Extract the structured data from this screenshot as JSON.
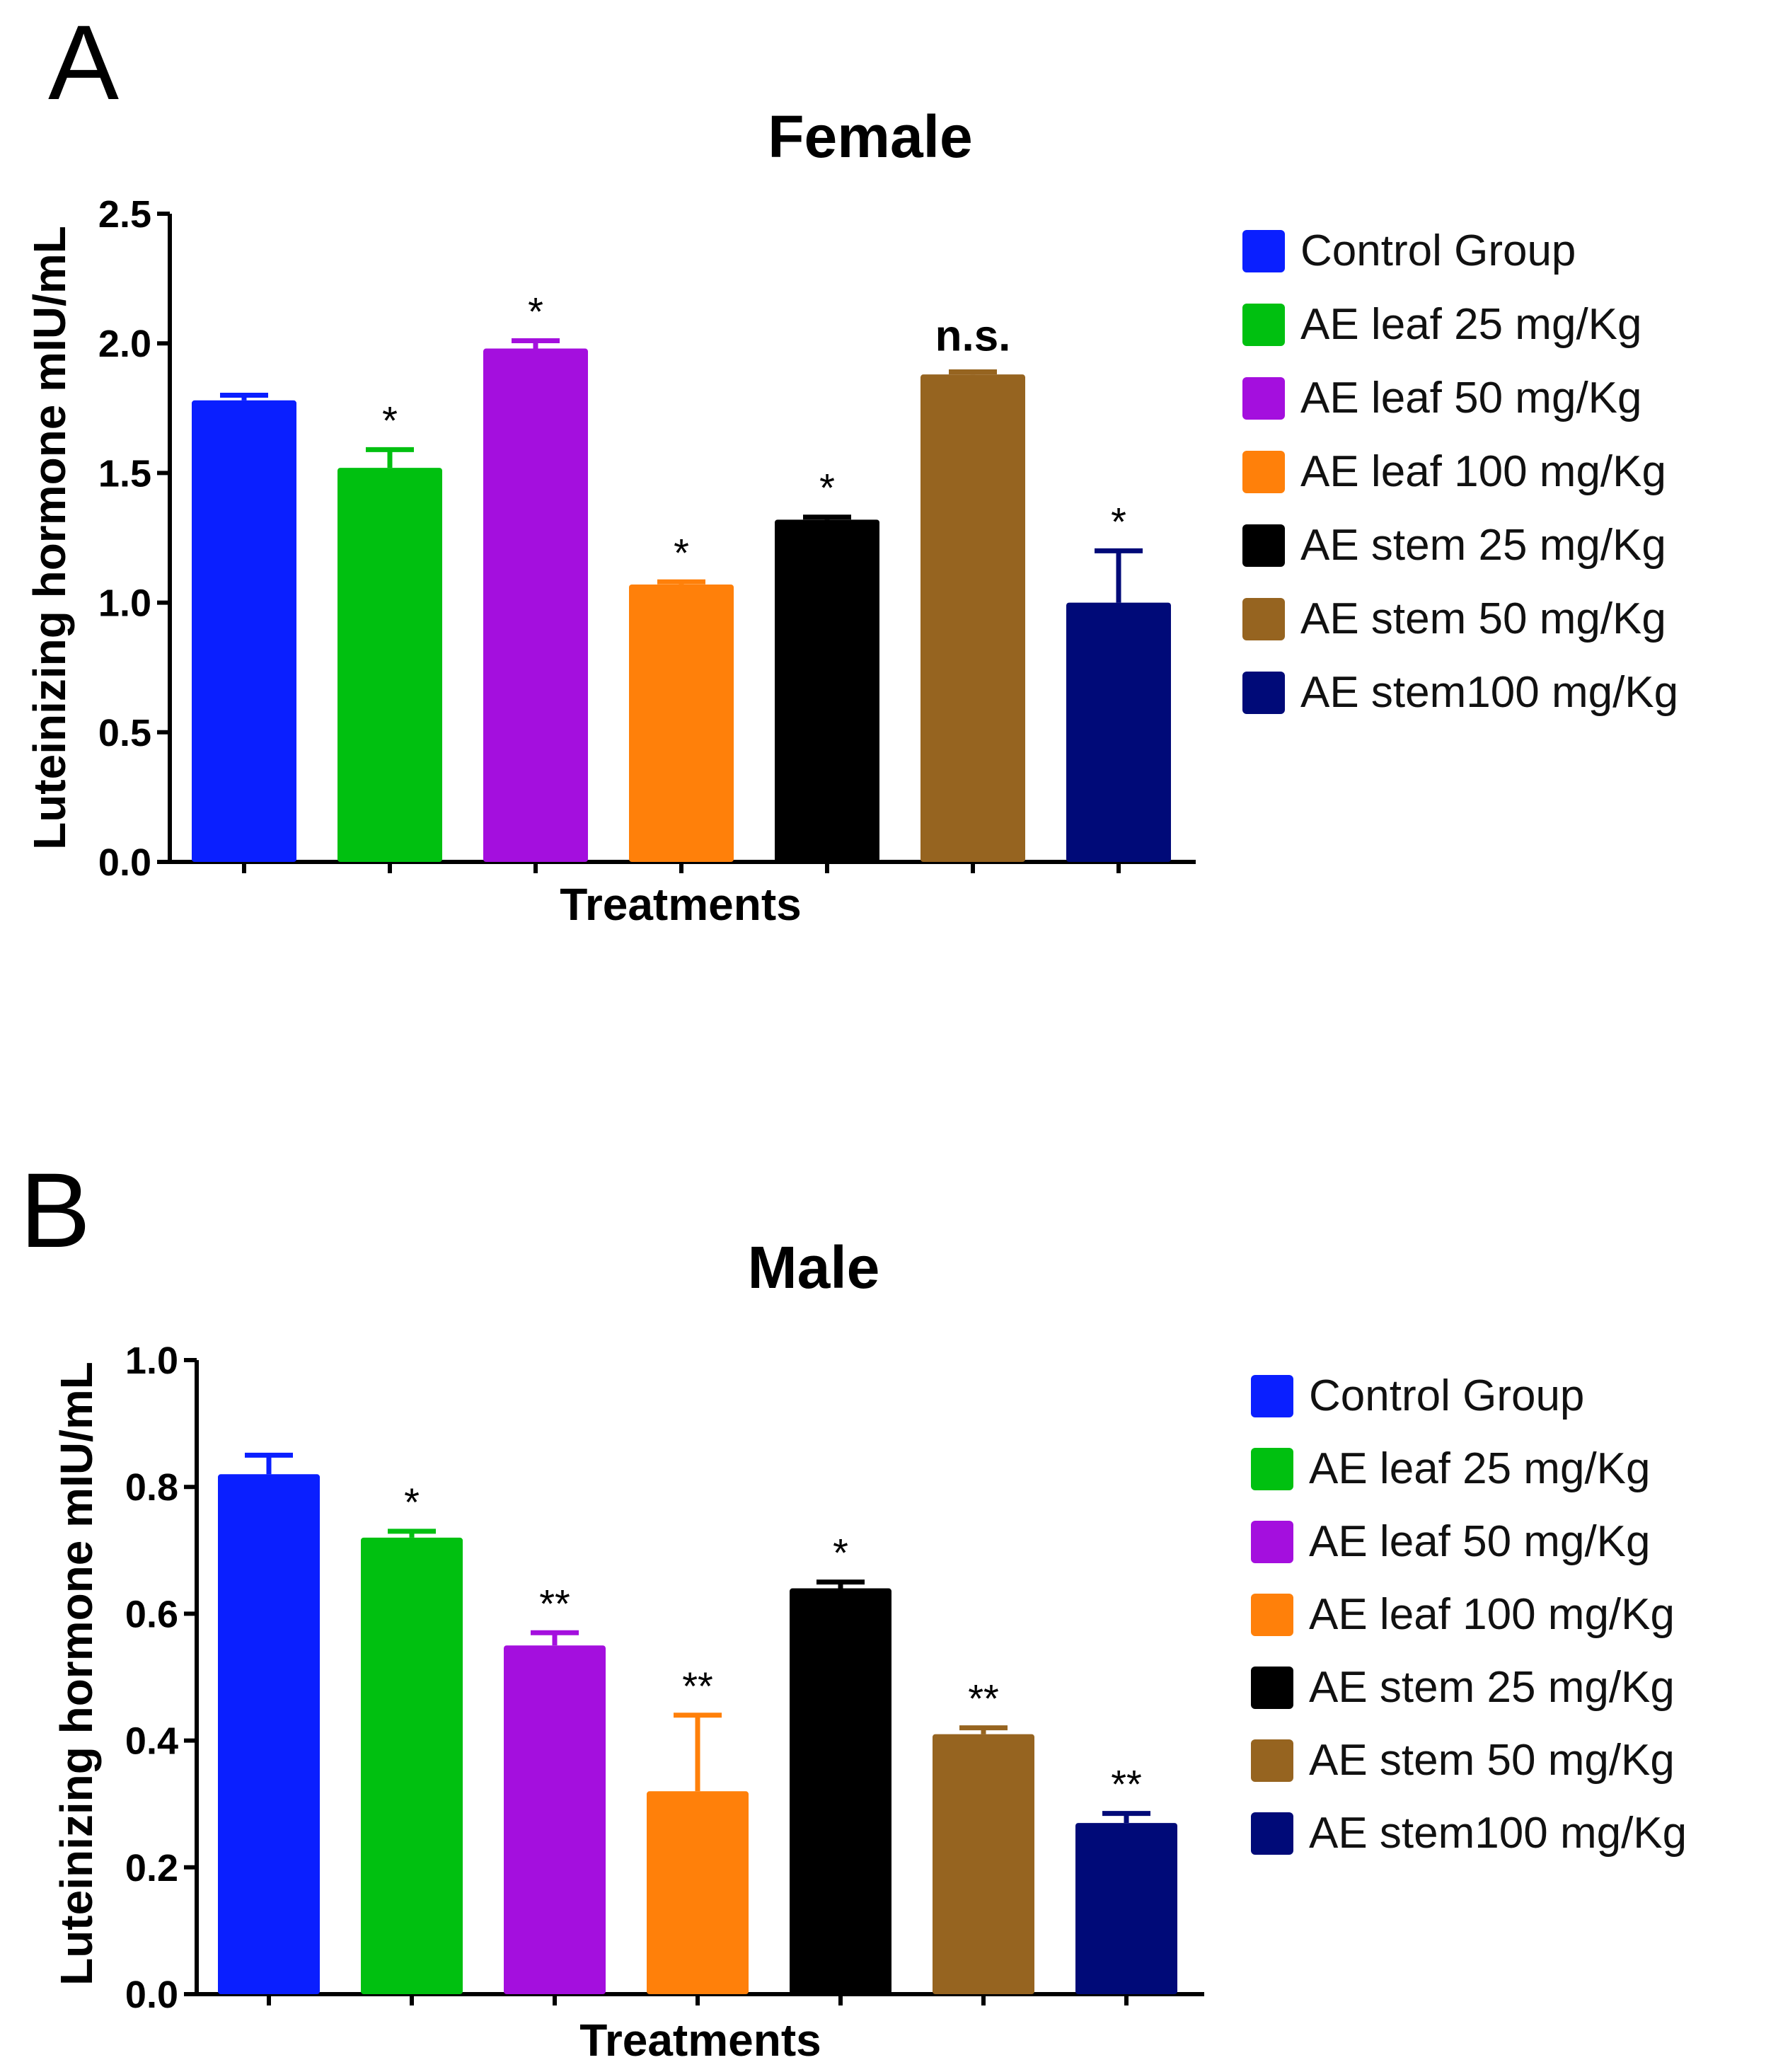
{
  "chart_data": [
    {
      "type": "bar",
      "panel": "A",
      "title": "Female",
      "xlabel": "Treatments",
      "ylabel": "Luteinizing hormone mIU/mL",
      "ylim": [
        0,
        2.5
      ],
      "yticks": [
        "0.0",
        "0.5",
        "1.0",
        "1.5",
        "2.0",
        "2.5"
      ],
      "yticks_values": [
        0,
        0.5,
        1.0,
        1.5,
        2.0,
        2.5
      ],
      "legend_position": "right",
      "series": [
        {
          "name": "Control Group",
          "color": "#0a1fff",
          "value": 1.78,
          "error": 0.02,
          "sig": ""
        },
        {
          "name": "AE leaf 25 mg/Kg",
          "color": "#00c010",
          "value": 1.52,
          "error": 0.07,
          "sig": "*"
        },
        {
          "name": "AE leaf 50 mg/Kg",
          "color": "#a40fde",
          "value": 1.98,
          "error": 0.03,
          "sig": "*"
        },
        {
          "name": "AE leaf 100 mg/Kg",
          "color": "#ff800a",
          "value": 1.07,
          "error": 0.01,
          "sig": "*"
        },
        {
          "name": "AE stem 25 mg/Kg",
          "color": "#000000",
          "value": 1.32,
          "error": 0.01,
          "sig": "*"
        },
        {
          "name": "AE stem 50 mg/Kg",
          "color": "#966420",
          "value": 1.88,
          "error": 0.01,
          "sig": "n.s."
        },
        {
          "name": "AE stem100 mg/Kg",
          "color": "#000a78",
          "value": 1.0,
          "error": 0.2,
          "sig": "*"
        }
      ]
    },
    {
      "type": "bar",
      "panel": "B",
      "title": "Male",
      "xlabel": "Treatments",
      "ylabel": "Luteinizing hormone mIU/mL",
      "ylim": [
        0,
        1.0
      ],
      "yticks": [
        "0.0",
        "0.2",
        "0.4",
        "0.6",
        "0.8",
        "1.0"
      ],
      "yticks_values": [
        0,
        0.2,
        0.4,
        0.6,
        0.8,
        1.0
      ],
      "legend_position": "right",
      "series": [
        {
          "name": "Control Group",
          "color": "#0a1fff",
          "value": 0.82,
          "error": 0.03,
          "sig": ""
        },
        {
          "name": "AE leaf 25 mg/Kg",
          "color": "#00c010",
          "value": 0.72,
          "error": 0.01,
          "sig": "*"
        },
        {
          "name": "AE leaf 50 mg/Kg",
          "color": "#a40fde",
          "value": 0.55,
          "error": 0.02,
          "sig": "**"
        },
        {
          "name": "AE leaf 100 mg/Kg",
          "color": "#ff800a",
          "value": 0.32,
          "error": 0.12,
          "sig": "**"
        },
        {
          "name": "AE stem 25 mg/Kg",
          "color": "#000000",
          "value": 0.64,
          "error": 0.01,
          "sig": "*"
        },
        {
          "name": "AE stem 50 mg/Kg",
          "color": "#966420",
          "value": 0.41,
          "error": 0.01,
          "sig": "**"
        },
        {
          "name": "AE stem100 mg/Kg",
          "color": "#000a78",
          "value": 0.27,
          "error": 0.015,
          "sig": "**"
        }
      ]
    }
  ]
}
